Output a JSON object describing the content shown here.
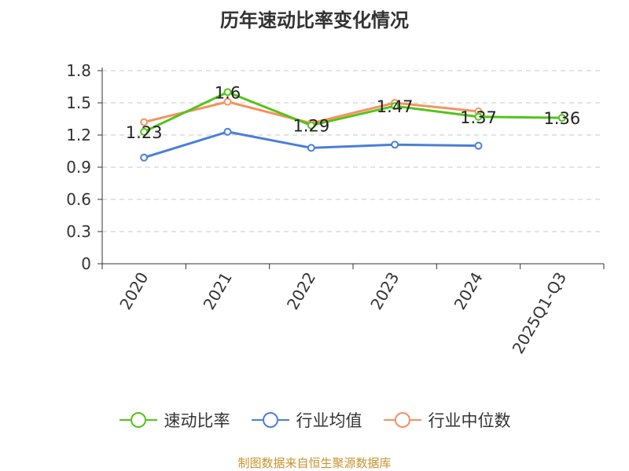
{
  "chart_data": {
    "type": "line",
    "title": "历年速动比率变化情况",
    "categories": [
      "2020",
      "2021",
      "2022",
      "2023",
      "2024",
      "2025Q1-Q3"
    ],
    "series": [
      {
        "name": "速动比率",
        "color": "#52c41a",
        "values": [
          1.23,
          1.6,
          1.29,
          1.47,
          1.37,
          1.36
        ],
        "labels": [
          "1.23",
          "1.6",
          "1.29",
          "1.47",
          "1.37",
          "1.36"
        ]
      },
      {
        "name": "行业均值",
        "color": "#4a7fd9",
        "values": [
          0.99,
          1.23,
          1.08,
          1.11,
          1.1,
          null
        ]
      },
      {
        "name": "行业中位数",
        "color": "#f5925d",
        "values": [
          1.32,
          1.51,
          1.31,
          1.5,
          1.42,
          null
        ]
      }
    ],
    "yticks": [
      "0",
      "0.3",
      "0.6",
      "0.9",
      "1.2",
      "1.5",
      "1.8"
    ],
    "ylim": [
      0,
      1.8
    ],
    "grid": true,
    "legend": "bottom-center"
  },
  "source": "制图数据来自恒生聚源数据库"
}
